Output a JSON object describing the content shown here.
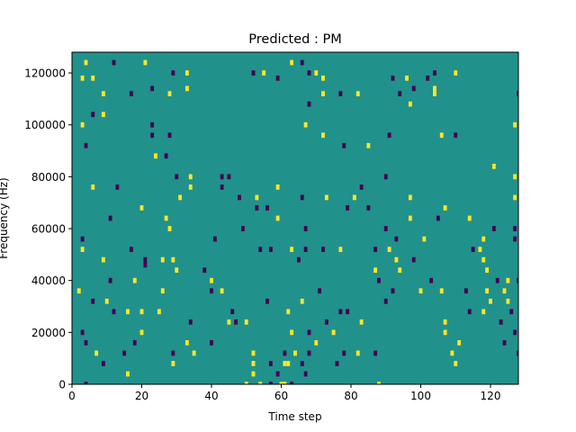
{
  "chart_data": {
    "type": "heatmap",
    "title": "Predicted : PM",
    "xlabel": "Time step",
    "ylabel": "Frequency (Hz)",
    "xlim": [
      0,
      128
    ],
    "ylim": [
      0,
      128000
    ],
    "xticks": [
      0,
      20,
      40,
      60,
      80,
      100,
      120
    ],
    "yticks": [
      0,
      20000,
      40000,
      60000,
      80000,
      100000,
      120000
    ],
    "n_time_steps": 128,
    "n_freq_bins": 64,
    "freq_bin_width_hz": 2000,
    "background_value": 0,
    "colors": {
      "background": "#21918c",
      "high": "#fde725",
      "low": "#440154"
    },
    "grid": false,
    "legend": "none",
    "cells": [
      {
        "t": 4,
        "f_hz": 124000,
        "v": 1
      },
      {
        "t": 12,
        "f_hz": 124000,
        "v": -1
      },
      {
        "t": 21,
        "f_hz": 124000,
        "v": 1
      },
      {
        "t": 63,
        "f_hz": 124000,
        "v": 1
      },
      {
        "t": 66,
        "f_hz": 124000,
        "v": -1
      },
      {
        "t": 29,
        "f_hz": 120000,
        "v": -1
      },
      {
        "t": 33,
        "f_hz": 120000,
        "v": 1
      },
      {
        "t": 52,
        "f_hz": 120000,
        "v": -1
      },
      {
        "t": 55,
        "f_hz": 120000,
        "v": 1
      },
      {
        "t": 68,
        "f_hz": 120000,
        "v": -1
      },
      {
        "t": 70,
        "f_hz": 120000,
        "v": 1
      },
      {
        "t": 104,
        "f_hz": 120000,
        "v": -1
      },
      {
        "t": 110,
        "f_hz": 120000,
        "v": 1
      },
      {
        "t": 3,
        "f_hz": 118000,
        "v": 1
      },
      {
        "t": 6,
        "f_hz": 118000,
        "v": 1
      },
      {
        "t": 59,
        "f_hz": 118000,
        "v": -1
      },
      {
        "t": 72,
        "f_hz": 118000,
        "v": 1
      },
      {
        "t": 92,
        "f_hz": 118000,
        "v": -1
      },
      {
        "t": 96,
        "f_hz": 118000,
        "v": 1
      },
      {
        "t": 102,
        "f_hz": 118000,
        "v": -1
      },
      {
        "t": 23,
        "f_hz": 114000,
        "v": -1
      },
      {
        "t": 33,
        "f_hz": 114000,
        "v": 1
      },
      {
        "t": 98,
        "f_hz": 114000,
        "v": -1
      },
      {
        "t": 104,
        "f_hz": 114000,
        "v": 1
      },
      {
        "t": 9,
        "f_hz": 112000,
        "v": 1
      },
      {
        "t": 17,
        "f_hz": 112000,
        "v": -1
      },
      {
        "t": 28,
        "f_hz": 112000,
        "v": 1
      },
      {
        "t": 72,
        "f_hz": 112000,
        "v": 1
      },
      {
        "t": 77,
        "f_hz": 112000,
        "v": -1
      },
      {
        "t": 82,
        "f_hz": 112000,
        "v": 1
      },
      {
        "t": 94,
        "f_hz": 112000,
        "v": -1
      },
      {
        "t": 104,
        "f_hz": 112000,
        "v": 1
      },
      {
        "t": 128,
        "f_hz": 112000,
        "v": -1
      },
      {
        "t": 68,
        "f_hz": 108000,
        "v": -1
      },
      {
        "t": 97,
        "f_hz": 108000,
        "v": 1
      },
      {
        "t": 6,
        "f_hz": 104000,
        "v": -1
      },
      {
        "t": 9,
        "f_hz": 104000,
        "v": 1
      },
      {
        "t": 3,
        "f_hz": 100000,
        "v": 1
      },
      {
        "t": 23,
        "f_hz": 100000,
        "v": -1
      },
      {
        "t": 67,
        "f_hz": 100000,
        "v": 1
      },
      {
        "t": 127,
        "f_hz": 100000,
        "v": 1
      },
      {
        "t": 23,
        "f_hz": 96000,
        "v": -1
      },
      {
        "t": 28,
        "f_hz": 96000,
        "v": -1
      },
      {
        "t": 72,
        "f_hz": 96000,
        "v": 1
      },
      {
        "t": 91,
        "f_hz": 96000,
        "v": -1
      },
      {
        "t": 106,
        "f_hz": 96000,
        "v": 1
      },
      {
        "t": 110,
        "f_hz": 96000,
        "v": -1
      },
      {
        "t": 4,
        "f_hz": 92000,
        "v": -1
      },
      {
        "t": 78,
        "f_hz": 92000,
        "v": -1
      },
      {
        "t": 85,
        "f_hz": 92000,
        "v": 1
      },
      {
        "t": 24,
        "f_hz": 88000,
        "v": 1
      },
      {
        "t": 27,
        "f_hz": 88000,
        "v": -1
      },
      {
        "t": 121,
        "f_hz": 84000,
        "v": 1
      },
      {
        "t": 30,
        "f_hz": 80000,
        "v": -1
      },
      {
        "t": 34,
        "f_hz": 80000,
        "v": 1
      },
      {
        "t": 43,
        "f_hz": 80000,
        "v": -1
      },
      {
        "t": 45,
        "f_hz": 80000,
        "v": -1
      },
      {
        "t": 90,
        "f_hz": 80000,
        "v": -1
      },
      {
        "t": 127,
        "f_hz": 80000,
        "v": 1
      },
      {
        "t": 6,
        "f_hz": 76000,
        "v": 1
      },
      {
        "t": 13,
        "f_hz": 76000,
        "v": -1
      },
      {
        "t": 34,
        "f_hz": 76000,
        "v": 1
      },
      {
        "t": 43,
        "f_hz": 76000,
        "v": -1
      },
      {
        "t": 59,
        "f_hz": 76000,
        "v": 1
      },
      {
        "t": 83,
        "f_hz": 76000,
        "v": -1
      },
      {
        "t": 31,
        "f_hz": 72000,
        "v": 1
      },
      {
        "t": 48,
        "f_hz": 72000,
        "v": -1
      },
      {
        "t": 53,
        "f_hz": 72000,
        "v": 1
      },
      {
        "t": 66,
        "f_hz": 72000,
        "v": -1
      },
      {
        "t": 73,
        "f_hz": 72000,
        "v": 1
      },
      {
        "t": 81,
        "f_hz": 72000,
        "v": 1
      },
      {
        "t": 97,
        "f_hz": 72000,
        "v": 1
      },
      {
        "t": 127,
        "f_hz": 72000,
        "v": 1
      },
      {
        "t": 20,
        "f_hz": 68000,
        "v": 1
      },
      {
        "t": 53,
        "f_hz": 68000,
        "v": -1
      },
      {
        "t": 56,
        "f_hz": 68000,
        "v": -1
      },
      {
        "t": 79,
        "f_hz": 68000,
        "v": -1
      },
      {
        "t": 85,
        "f_hz": 68000,
        "v": -1
      },
      {
        "t": 107,
        "f_hz": 68000,
        "v": 1
      },
      {
        "t": 11,
        "f_hz": 64000,
        "v": -1
      },
      {
        "t": 27,
        "f_hz": 64000,
        "v": 1
      },
      {
        "t": 59,
        "f_hz": 64000,
        "v": 1
      },
      {
        "t": 97,
        "f_hz": 64000,
        "v": 1
      },
      {
        "t": 105,
        "f_hz": 64000,
        "v": -1
      },
      {
        "t": 114,
        "f_hz": 64000,
        "v": 1
      },
      {
        "t": 28,
        "f_hz": 60000,
        "v": 1
      },
      {
        "t": 49,
        "f_hz": 60000,
        "v": -1
      },
      {
        "t": 67,
        "f_hz": 60000,
        "v": -1
      },
      {
        "t": 90,
        "f_hz": 60000,
        "v": -1
      },
      {
        "t": 121,
        "f_hz": 60000,
        "v": -1
      },
      {
        "t": 127,
        "f_hz": 60000,
        "v": -1
      },
      {
        "t": 3,
        "f_hz": 56000,
        "v": -1
      },
      {
        "t": 41,
        "f_hz": 56000,
        "v": -1
      },
      {
        "t": 93,
        "f_hz": 56000,
        "v": -1
      },
      {
        "t": 101,
        "f_hz": 56000,
        "v": 1
      },
      {
        "t": 118,
        "f_hz": 56000,
        "v": 1
      },
      {
        "t": 127,
        "f_hz": 56000,
        "v": -1
      },
      {
        "t": 3,
        "f_hz": 52000,
        "v": 1
      },
      {
        "t": 17,
        "f_hz": 52000,
        "v": -1
      },
      {
        "t": 54,
        "f_hz": 52000,
        "v": -1
      },
      {
        "t": 57,
        "f_hz": 52000,
        "v": -1
      },
      {
        "t": 63,
        "f_hz": 52000,
        "v": 1
      },
      {
        "t": 67,
        "f_hz": 52000,
        "v": -1
      },
      {
        "t": 72,
        "f_hz": 52000,
        "v": -1
      },
      {
        "t": 77,
        "f_hz": 52000,
        "v": 1
      },
      {
        "t": 87,
        "f_hz": 52000,
        "v": -1
      },
      {
        "t": 91,
        "f_hz": 52000,
        "v": 1
      },
      {
        "t": 115,
        "f_hz": 52000,
        "v": -1
      },
      {
        "t": 117,
        "f_hz": 52000,
        "v": 1
      },
      {
        "t": 9,
        "f_hz": 48000,
        "v": 1
      },
      {
        "t": 21,
        "f_hz": 48000,
        "v": -1
      },
      {
        "t": 26,
        "f_hz": 48000,
        "v": 1
      },
      {
        "t": 29,
        "f_hz": 48000,
        "v": 1
      },
      {
        "t": 65,
        "f_hz": 48000,
        "v": -1
      },
      {
        "t": 93,
        "f_hz": 48000,
        "v": 1
      },
      {
        "t": 98,
        "f_hz": 48000,
        "v": -1
      },
      {
        "t": 118,
        "f_hz": 48000,
        "v": 1
      },
      {
        "t": 21,
        "f_hz": 46000,
        "v": -1
      },
      {
        "t": 30,
        "f_hz": 44000,
        "v": 1
      },
      {
        "t": 38,
        "f_hz": 44000,
        "v": -1
      },
      {
        "t": 87,
        "f_hz": 44000,
        "v": 1
      },
      {
        "t": 94,
        "f_hz": 44000,
        "v": 1
      },
      {
        "t": 119,
        "f_hz": 44000,
        "v": 1
      },
      {
        "t": 11,
        "f_hz": 40000,
        "v": -1
      },
      {
        "t": 18,
        "f_hz": 40000,
        "v": 1
      },
      {
        "t": 40,
        "f_hz": 40000,
        "v": 1
      },
      {
        "t": 88,
        "f_hz": 40000,
        "v": -1
      },
      {
        "t": 103,
        "f_hz": 40000,
        "v": -1
      },
      {
        "t": 122,
        "f_hz": 40000,
        "v": -1
      },
      {
        "t": 125,
        "f_hz": 40000,
        "v": 1
      },
      {
        "t": 128,
        "f_hz": 40000,
        "v": -1
      },
      {
        "t": 2,
        "f_hz": 36000,
        "v": 1
      },
      {
        "t": 26,
        "f_hz": 36000,
        "v": 1
      },
      {
        "t": 40,
        "f_hz": 36000,
        "v": -1
      },
      {
        "t": 43,
        "f_hz": 36000,
        "v": 1
      },
      {
        "t": 71,
        "f_hz": 36000,
        "v": -1
      },
      {
        "t": 92,
        "f_hz": 36000,
        "v": -1
      },
      {
        "t": 100,
        "f_hz": 36000,
        "v": 1
      },
      {
        "t": 106,
        "f_hz": 36000,
        "v": 1
      },
      {
        "t": 113,
        "f_hz": 36000,
        "v": -1
      },
      {
        "t": 119,
        "f_hz": 36000,
        "v": 1
      },
      {
        "t": 124,
        "f_hz": 36000,
        "v": 1
      },
      {
        "t": 6,
        "f_hz": 32000,
        "v": -1
      },
      {
        "t": 10,
        "f_hz": 32000,
        "v": 1
      },
      {
        "t": 56,
        "f_hz": 32000,
        "v": -1
      },
      {
        "t": 66,
        "f_hz": 32000,
        "v": 1
      },
      {
        "t": 90,
        "f_hz": 32000,
        "v": -1
      },
      {
        "t": 120,
        "f_hz": 32000,
        "v": 1
      },
      {
        "t": 125,
        "f_hz": 32000,
        "v": 1
      },
      {
        "t": 12,
        "f_hz": 28000,
        "v": -1
      },
      {
        "t": 16,
        "f_hz": 28000,
        "v": 1
      },
      {
        "t": 20,
        "f_hz": 28000,
        "v": 1
      },
      {
        "t": 25,
        "f_hz": 28000,
        "v": 1
      },
      {
        "t": 46,
        "f_hz": 28000,
        "v": -1
      },
      {
        "t": 62,
        "f_hz": 28000,
        "v": 1
      },
      {
        "t": 77,
        "f_hz": 28000,
        "v": -1
      },
      {
        "t": 79,
        "f_hz": 28000,
        "v": -1
      },
      {
        "t": 114,
        "f_hz": 28000,
        "v": -1
      },
      {
        "t": 118,
        "f_hz": 28000,
        "v": 1
      },
      {
        "t": 126,
        "f_hz": 28000,
        "v": -1
      },
      {
        "t": 34,
        "f_hz": 24000,
        "v": -1
      },
      {
        "t": 45,
        "f_hz": 24000,
        "v": 1
      },
      {
        "t": 47,
        "f_hz": 24000,
        "v": -1
      },
      {
        "t": 50,
        "f_hz": 24000,
        "v": 1
      },
      {
        "t": 73,
        "f_hz": 24000,
        "v": -1
      },
      {
        "t": 83,
        "f_hz": 24000,
        "v": 1
      },
      {
        "t": 107,
        "f_hz": 24000,
        "v": 1
      },
      {
        "t": 123,
        "f_hz": 24000,
        "v": -1
      },
      {
        "t": 3,
        "f_hz": 20000,
        "v": -1
      },
      {
        "t": 20,
        "f_hz": 20000,
        "v": 1
      },
      {
        "t": 63,
        "f_hz": 20000,
        "v": 1
      },
      {
        "t": 68,
        "f_hz": 20000,
        "v": -1
      },
      {
        "t": 75,
        "f_hz": 20000,
        "v": 1
      },
      {
        "t": 107,
        "f_hz": 20000,
        "v": 1
      },
      {
        "t": 127,
        "f_hz": 20000,
        "v": -1
      },
      {
        "t": 4,
        "f_hz": 16000,
        "v": -1
      },
      {
        "t": 18,
        "f_hz": 16000,
        "v": -1
      },
      {
        "t": 33,
        "f_hz": 16000,
        "v": 1
      },
      {
        "t": 40,
        "f_hz": 16000,
        "v": -1
      },
      {
        "t": 70,
        "f_hz": 16000,
        "v": 1
      },
      {
        "t": 111,
        "f_hz": 16000,
        "v": 1
      },
      {
        "t": 124,
        "f_hz": 16000,
        "v": -1
      },
      {
        "t": 7,
        "f_hz": 12000,
        "v": 1
      },
      {
        "t": 15,
        "f_hz": 12000,
        "v": -1
      },
      {
        "t": 29,
        "f_hz": 12000,
        "v": -1
      },
      {
        "t": 35,
        "f_hz": 12000,
        "v": 1
      },
      {
        "t": 52,
        "f_hz": 12000,
        "v": 1
      },
      {
        "t": 61,
        "f_hz": 12000,
        "v": -1
      },
      {
        "t": 64,
        "f_hz": 12000,
        "v": 1
      },
      {
        "t": 68,
        "f_hz": 12000,
        "v": -1
      },
      {
        "t": 78,
        "f_hz": 12000,
        "v": -1
      },
      {
        "t": 82,
        "f_hz": 12000,
        "v": 1
      },
      {
        "t": 87,
        "f_hz": 12000,
        "v": -1
      },
      {
        "t": 109,
        "f_hz": 12000,
        "v": 1
      },
      {
        "t": 128,
        "f_hz": 12000,
        "v": -1
      },
      {
        "t": 9,
        "f_hz": 8000,
        "v": -1
      },
      {
        "t": 29,
        "f_hz": 8000,
        "v": 1
      },
      {
        "t": 52,
        "f_hz": 8000,
        "v": 1
      },
      {
        "t": 57,
        "f_hz": 8000,
        "v": -1
      },
      {
        "t": 61,
        "f_hz": 8000,
        "v": 1
      },
      {
        "t": 62,
        "f_hz": 8000,
        "v": 1
      },
      {
        "t": 66,
        "f_hz": 8000,
        "v": -1
      },
      {
        "t": 76,
        "f_hz": 8000,
        "v": -1
      },
      {
        "t": 110,
        "f_hz": 8000,
        "v": 1
      },
      {
        "t": 16,
        "f_hz": 4000,
        "v": 1
      },
      {
        "t": 52,
        "f_hz": 4000,
        "v": 1
      },
      {
        "t": 59,
        "f_hz": 4000,
        "v": -1
      },
      {
        "t": 67,
        "f_hz": 4000,
        "v": -1
      },
      {
        "t": 4,
        "f_hz": 0,
        "v": -1
      },
      {
        "t": 50,
        "f_hz": 0,
        "v": 1
      },
      {
        "t": 54,
        "f_hz": 0,
        "v": 1
      },
      {
        "t": 57,
        "f_hz": 0,
        "v": -1
      },
      {
        "t": 60,
        "f_hz": 0,
        "v": 1
      },
      {
        "t": 61,
        "f_hz": 0,
        "v": 1
      },
      {
        "t": 63,
        "f_hz": 0,
        "v": -1
      },
      {
        "t": 88,
        "f_hz": 0,
        "v": 1
      }
    ]
  }
}
